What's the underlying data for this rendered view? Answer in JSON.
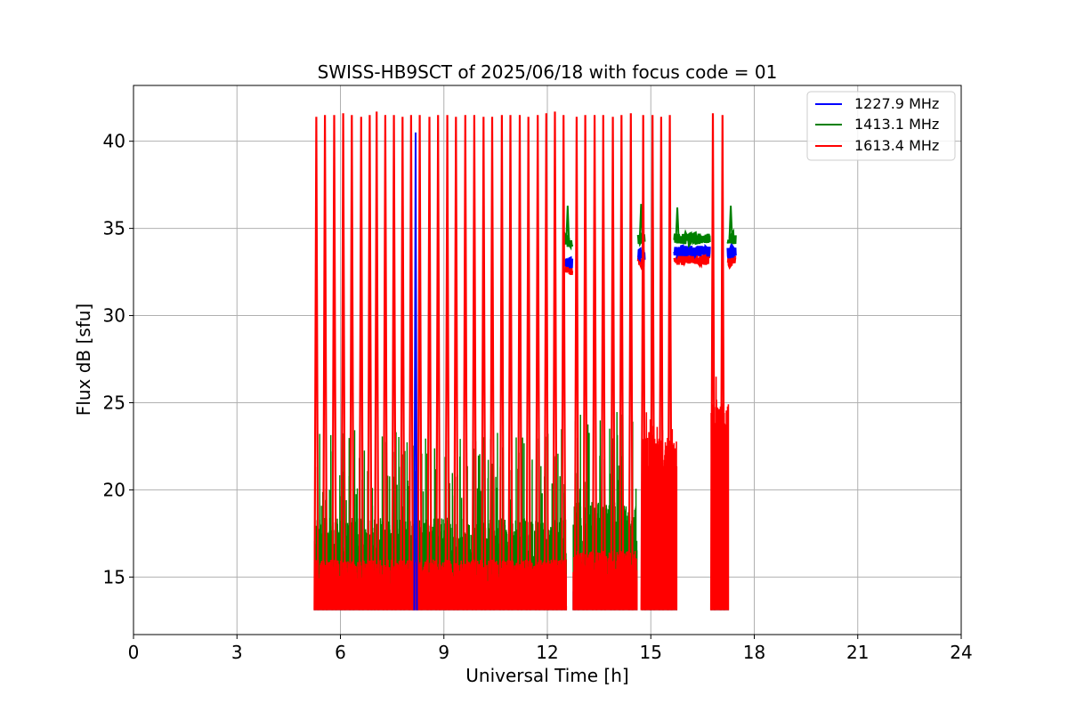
{
  "chart_data": {
    "type": "line",
    "title": "SWISS-HB9SCT of 2025/06/18 with focus code = 01",
    "xlabel": "Universal Time [h]",
    "ylabel": "Flux dB [sfu]",
    "xlim": [
      0,
      24
    ],
    "ylim": [
      11.7,
      43.2
    ],
    "xticks": [
      0,
      3,
      6,
      9,
      12,
      15,
      18,
      21,
      24
    ],
    "yticks": [
      15,
      20,
      25,
      30,
      35,
      40
    ],
    "grid": true,
    "legend_position": "top-right",
    "floor": 13.1,
    "series": [
      {
        "name": "1227.9 MHz",
        "color": "#0000ff"
      },
      {
        "name": "1413.1 MHz",
        "color": "#008000"
      },
      {
        "name": "1613.4 MHz",
        "color": "#ff0000"
      }
    ],
    "segments": [
      {
        "start": 5.25,
        "end": 12.55,
        "mode": "bursty",
        "red_top": 16.0,
        "green_top": 19.0
      },
      {
        "start": 12.75,
        "end": 14.6,
        "mode": "bursty",
        "red_top": 16.5,
        "green_top": 20.0
      },
      {
        "start": 14.75,
        "end": 15.75,
        "mode": "dense",
        "red_top": 23.0,
        "green_top": 22.0
      },
      {
        "start": 16.75,
        "end": 17.25,
        "mode": "dense",
        "red_top": 25.0,
        "green_top": 23.0
      }
    ],
    "spikes": {
      "times": [
        5.3,
        5.55,
        5.82,
        6.08,
        6.33,
        6.6,
        6.85,
        7.05,
        7.3,
        7.55,
        7.8,
        8.05,
        8.3,
        8.58,
        8.83,
        9.1,
        9.35,
        9.62,
        9.88,
        10.15,
        10.4,
        10.68,
        10.93,
        11.2,
        11.45,
        11.72,
        11.97,
        12.22,
        12.47,
        12.85,
        13.1,
        13.37,
        13.62,
        13.9,
        14.15,
        14.42,
        14.78,
        15.05,
        15.3,
        15.55,
        16.8,
        17.08
      ],
      "peaks": [
        41.4,
        41.5,
        41.5,
        41.6,
        41.5,
        41.4,
        41.5,
        41.7,
        41.5,
        41.5,
        41.4,
        41.5,
        41.5,
        41.4,
        41.5,
        41.5,
        41.4,
        41.5,
        41.5,
        41.4,
        41.4,
        41.5,
        41.5,
        41.5,
        41.4,
        41.5,
        41.6,
        41.7,
        41.5,
        41.4,
        41.5,
        41.5,
        41.5,
        41.4,
        41.5,
        41.6,
        41.5,
        41.5,
        41.4,
        41.5,
        41.6,
        41.5
      ]
    },
    "blue_spike": {
      "time": 8.18,
      "peak": 40.5
    },
    "plateaus": [
      {
        "start": 12.52,
        "end": 12.7,
        "blue": 33.0,
        "green": 34.2,
        "red": 32.6,
        "green_spike": 36.3
      },
      {
        "start": 14.65,
        "end": 14.8,
        "blue": 33.5,
        "green": 34.4,
        "red": 33.0,
        "green_spike": 36.4
      },
      {
        "start": 15.7,
        "end": 16.7,
        "blue": 33.7,
        "green": 34.4,
        "red": 33.2,
        "green_spike": 36.2
      },
      {
        "start": 17.25,
        "end": 17.45,
        "blue": 33.6,
        "green": 34.4,
        "red": 33.1,
        "green_spike": 36.3
      }
    ]
  }
}
